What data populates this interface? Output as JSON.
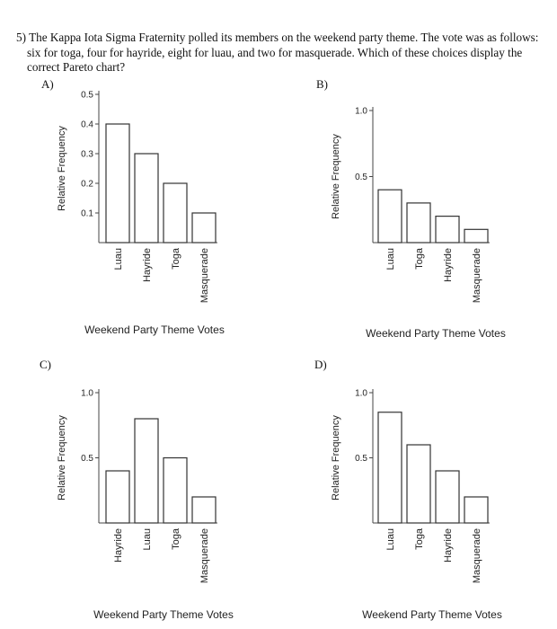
{
  "question": {
    "number": "5)",
    "text": "The Kappa Iota Sigma Fraternity polled its members on the weekend party theme. The vote was as follows: six for toga, four for hayride, eight for luau, and two for masquerade. Which of these choices display the correct Pareto chart?"
  },
  "chart_data": [
    {
      "panel": "A)",
      "type": "bar",
      "categories": [
        "Luau",
        "Hayride",
        "Toga",
        "Masquerade"
      ],
      "values": [
        0.4,
        0.3,
        0.2,
        0.1
      ],
      "ylabel": "Relative Frequency",
      "xlabel": "Weekend Party Theme Votes",
      "ylim": [
        0,
        0.5
      ],
      "yticks": [
        "0.1",
        "0.2",
        "0.3",
        "0.4",
        "0.5"
      ],
      "grid": false
    },
    {
      "panel": "B)",
      "type": "bar",
      "categories": [
        "Luau",
        "Toga",
        "Hayride",
        "Masquerade"
      ],
      "values": [
        0.4,
        0.3,
        0.2,
        0.1
      ],
      "ylabel": "Relative Frequency",
      "xlabel": "Weekend Party Theme Votes",
      "ylim": [
        0,
        1.0
      ],
      "yticks": [
        "0.5",
        "1.0"
      ],
      "grid": false
    },
    {
      "panel": "C)",
      "type": "bar",
      "categories": [
        "Hayride",
        "Luau",
        "Toga",
        "Masquerade"
      ],
      "values": [
        0.4,
        0.8,
        0.5,
        0.2
      ],
      "ylabel": "Relative Frequency",
      "xlabel": "Weekend Party Theme Votes",
      "ylim": [
        0,
        1.0
      ],
      "yticks": [
        "0.5",
        "1.0"
      ],
      "grid": false
    },
    {
      "panel": "D)",
      "type": "bar",
      "categories": [
        "Luau",
        "Toga",
        "Hayride",
        "Masquerade"
      ],
      "values": [
        0.85,
        0.6,
        0.4,
        0.2
      ],
      "ylabel": "Relative Frequency",
      "xlabel": "Weekend Party Theme Votes",
      "ylim": [
        0,
        1.0
      ],
      "yticks": [
        "0.5",
        "1.0"
      ],
      "grid": false
    }
  ]
}
